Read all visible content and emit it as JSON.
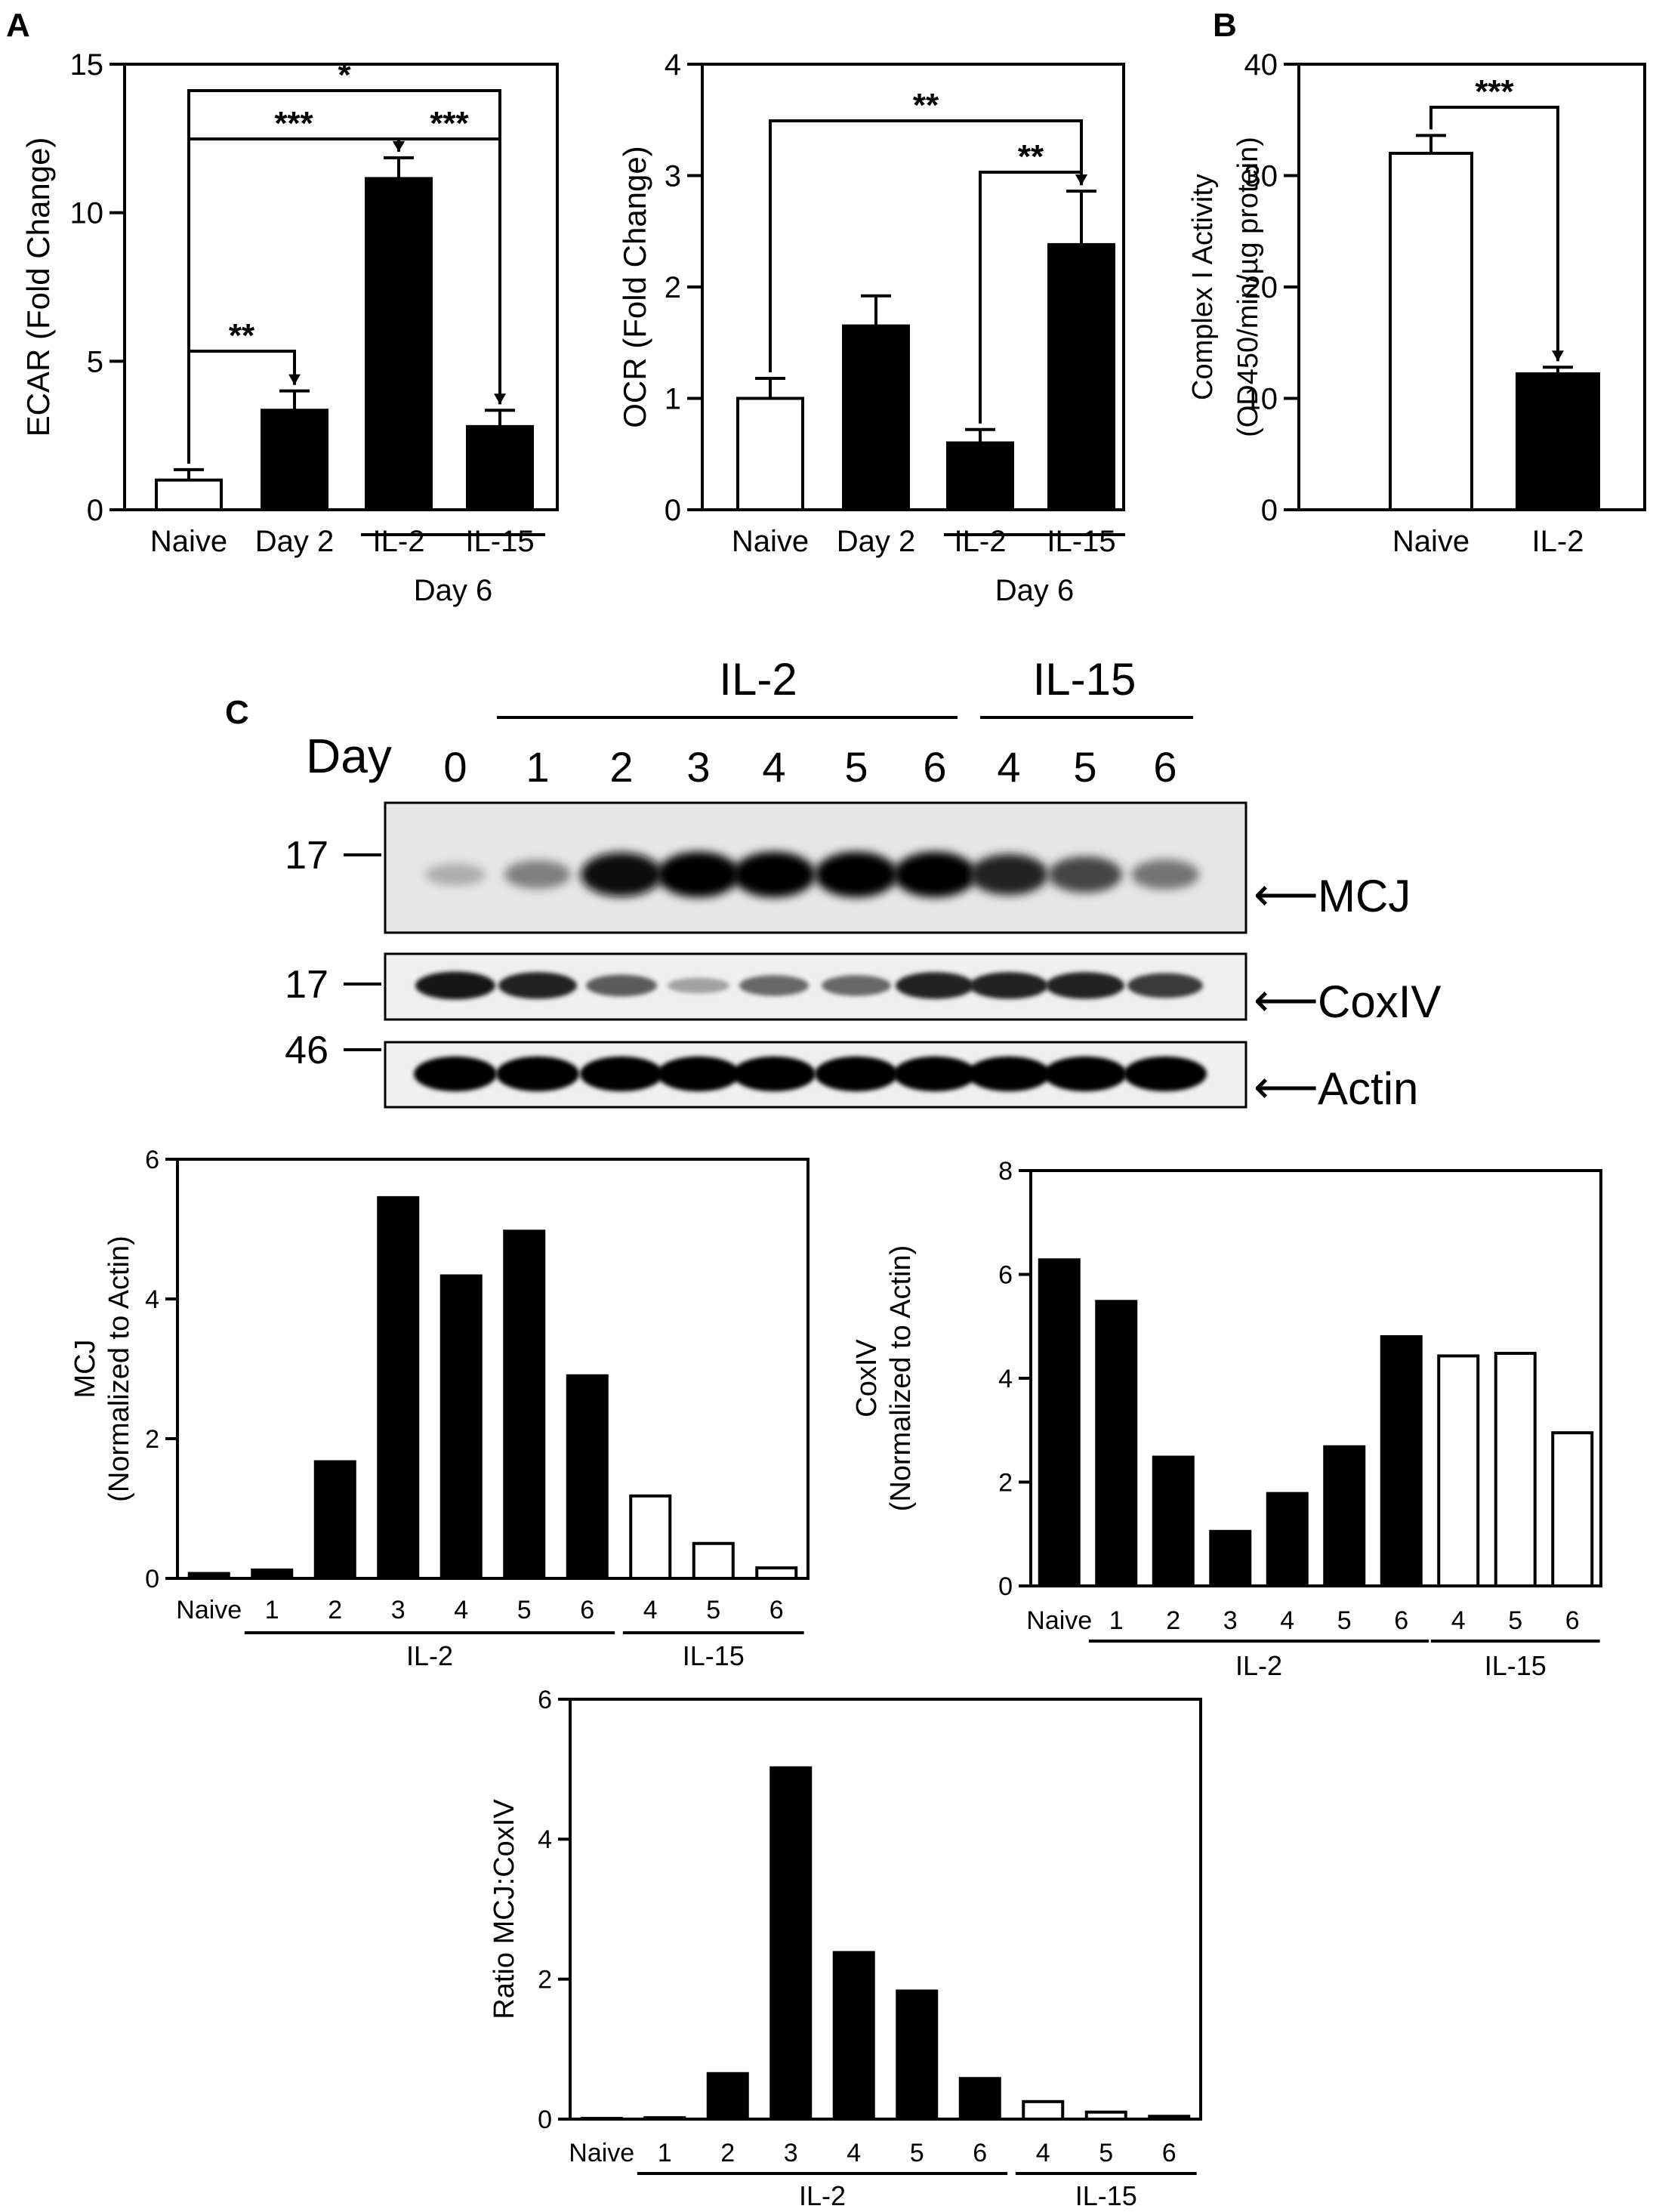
{
  "panels": {
    "a": "A",
    "b": "B",
    "c": "C"
  },
  "blot": {
    "day_label": "Day",
    "days": [
      "0",
      "1",
      "2",
      "3",
      "4",
      "5",
      "6",
      "4",
      "5",
      "6"
    ],
    "group_labels": {
      "il2": "IL-2",
      "il15": "IL-15"
    },
    "markers": {
      "mcj": "17",
      "coxiv": "17",
      "actin": "46"
    },
    "bands": {
      "mcj": "MCJ",
      "coxiv": "CoxIV",
      "actin": "Actin"
    },
    "arrow": "⟵",
    "intensity": {
      "mcj": [
        0.25,
        0.45,
        0.95,
        1.0,
        1.0,
        1.0,
        1.0,
        0.85,
        0.7,
        0.5
      ],
      "coxiv": [
        0.9,
        0.85,
        0.6,
        0.3,
        0.55,
        0.55,
        0.85,
        0.85,
        0.85,
        0.75
      ],
      "actin": [
        1,
        1,
        1,
        1,
        1,
        1,
        1,
        1,
        1,
        1
      ]
    }
  },
  "chart_data": [
    {
      "type": "bar",
      "categories": [
        "Naive",
        "Day 2",
        "IL-2",
        "IL-15"
      ],
      "values": [
        1.0,
        3.35,
        11.15,
        2.8
      ],
      "errors": [
        0.35,
        0.65,
        0.7,
        0.55
      ],
      "fills": [
        "white",
        "black",
        "black",
        "black"
      ],
      "ylabel": "ECAR (Fold Change)",
      "ylim": [
        0,
        15
      ],
      "yticks": [
        "0",
        "5",
        "10",
        "15"
      ],
      "group_label": "Day 6",
      "significance": [
        {
          "from": 0,
          "to": 3,
          "label": "*"
        },
        {
          "from": 0,
          "to": 2,
          "label": "***"
        },
        {
          "from": 3,
          "to": 2,
          "label": "***"
        },
        {
          "from": 0,
          "to": 1,
          "label": "**"
        }
      ]
    },
    {
      "type": "bar",
      "categories": [
        "Naive",
        "Day 2",
        "IL-2",
        "IL-15"
      ],
      "values": [
        1.0,
        1.65,
        0.6,
        2.38
      ],
      "errors": [
        0.18,
        0.27,
        0.12,
        0.48
      ],
      "fills": [
        "white",
        "black",
        "black",
        "black"
      ],
      "ylabel": "OCR (Fold Change)",
      "ylim": [
        0,
        4
      ],
      "yticks": [
        "0",
        "1",
        "2",
        "3",
        "4"
      ],
      "group_label": "Day 6",
      "significance": [
        {
          "from": 0,
          "to": 3,
          "label": "**"
        },
        {
          "from": 2,
          "to": 3,
          "label": "**"
        }
      ]
    },
    {
      "type": "bar",
      "categories": [
        "Naive",
        "IL-2"
      ],
      "values": [
        32.0,
        12.2
      ],
      "errors": [
        1.6,
        0.6
      ],
      "fills": [
        "white",
        "black"
      ],
      "ylabel": "Complex I Activity",
      "ylabel2": "(OD450/min/µg protein)",
      "ylim": [
        0,
        40
      ],
      "yticks": [
        "0",
        "10",
        "20",
        "30",
        "40"
      ],
      "significance": [
        {
          "from": 0,
          "to": 1,
          "label": "***"
        }
      ]
    },
    {
      "type": "bar",
      "categories": [
        "Naive",
        "1",
        "2",
        "3",
        "4",
        "5",
        "6",
        "4",
        "5",
        "6"
      ],
      "values": [
        0.07,
        0.12,
        1.67,
        5.45,
        4.33,
        4.97,
        2.9,
        1.18,
        0.5,
        0.15
      ],
      "fills": [
        "black",
        "black",
        "black",
        "black",
        "black",
        "black",
        "black",
        "white",
        "white",
        "white"
      ],
      "ylabel": "MCJ",
      "ylabel2": "(Normalized to Actin)",
      "ylim": [
        0,
        6
      ],
      "yticks": [
        "0",
        "2",
        "4",
        "6"
      ],
      "groups": [
        {
          "label": "IL-2",
          "from": 1,
          "to": 6
        },
        {
          "label": "IL-15",
          "from": 7,
          "to": 9
        }
      ]
    },
    {
      "type": "bar",
      "categories": [
        "Naive",
        "1",
        "2",
        "3",
        "4",
        "5",
        "6",
        "4",
        "5",
        "6"
      ],
      "values": [
        6.28,
        5.48,
        2.48,
        1.05,
        1.78,
        2.68,
        4.8,
        4.43,
        4.48,
        2.95
      ],
      "fills": [
        "black",
        "black",
        "black",
        "black",
        "black",
        "black",
        "black",
        "white",
        "white",
        "white"
      ],
      "ylabel": "CoxIV",
      "ylabel2": "(Normalized to Actin)",
      "ylim": [
        0,
        8
      ],
      "yticks": [
        "0",
        "2",
        "4",
        "6",
        "8"
      ],
      "groups": [
        {
          "label": "IL-2",
          "from": 1,
          "to": 6
        },
        {
          "label": "IL-15",
          "from": 7,
          "to": 9
        }
      ]
    },
    {
      "type": "bar",
      "categories": [
        "Naive",
        "1",
        "2",
        "3",
        "4",
        "5",
        "6",
        "4",
        "5",
        "6"
      ],
      "values": [
        0.01,
        0.02,
        0.65,
        5.02,
        2.38,
        1.83,
        0.58,
        0.25,
        0.1,
        0.04
      ],
      "fills": [
        "black",
        "black",
        "black",
        "black",
        "black",
        "black",
        "black",
        "white",
        "white",
        "white"
      ],
      "ylabel": "Ratio MCJ:CoxIV",
      "ylim": [
        0,
        6
      ],
      "yticks": [
        "0",
        "2",
        "4",
        "6"
      ],
      "groups": [
        {
          "label": "IL-2",
          "from": 1,
          "to": 6
        },
        {
          "label": "IL-15",
          "from": 7,
          "to": 9
        }
      ]
    }
  ]
}
